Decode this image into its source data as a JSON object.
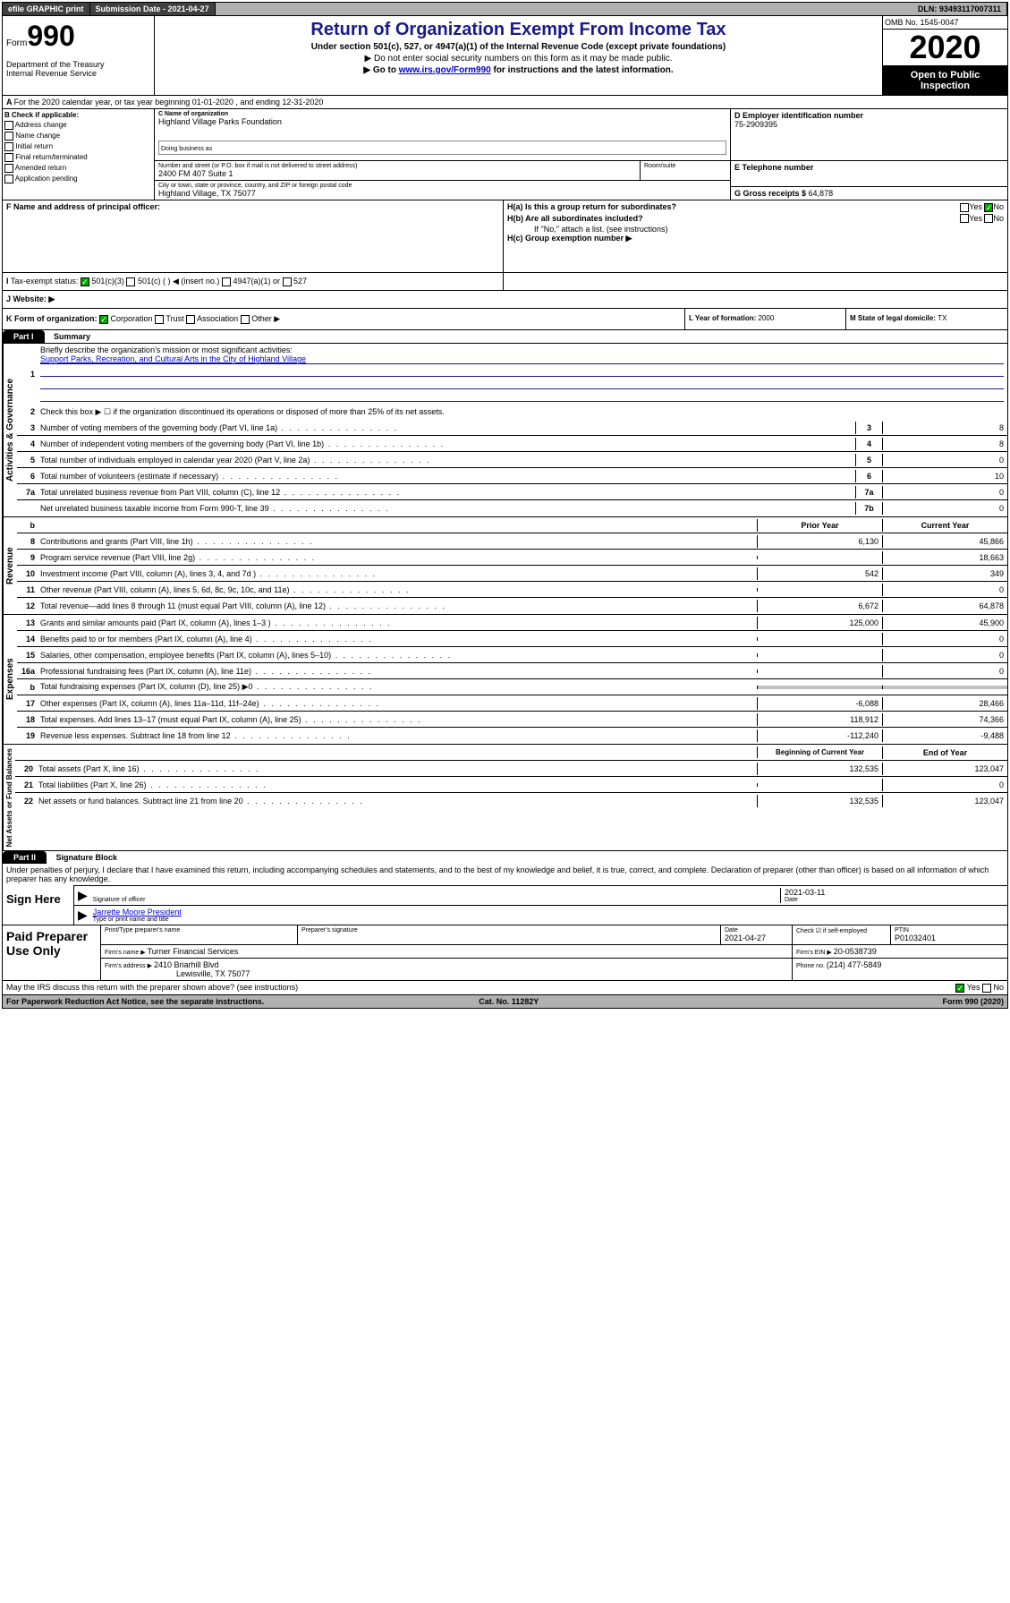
{
  "topbar": {
    "efile": "efile GRAPHIC print",
    "subdate_label": "Submission Date - ",
    "subdate": "2021-04-27",
    "dln_label": "DLN: ",
    "dln": "93493117007311"
  },
  "header": {
    "form_label": "Form",
    "form_no": "990",
    "dept": "Department of the Treasury\nInternal Revenue Service",
    "title": "Return of Organization Exempt From Income Tax",
    "sub1": "Under section 501(c), 527, or 4947(a)(1) of the Internal Revenue Code (except private foundations)",
    "sub2": "▶ Do not enter social security numbers on this form as it may be made public.",
    "sub3a": "▶ Go to ",
    "sub3_link": "www.irs.gov/Form990",
    "sub3b": " for instructions and the latest information.",
    "omb": "OMB No. 1545-0047",
    "year": "2020",
    "open": "Open to Public Inspection"
  },
  "rowA": "For the 2020 calendar year, or tax year beginning 01-01-2020  , and ending 12-31-2020",
  "colB": {
    "title": "B Check if applicable:",
    "items": [
      "Address change",
      "Name change",
      "Initial return",
      "Final return/terminated",
      "Amended return",
      "Application pending"
    ]
  },
  "entity": {
    "c_label": "C Name of organization",
    "c_name": "Highland Village Parks Foundation",
    "dba_label": "Doing business as",
    "street_label": "Number and street (or P.O. box if mail is not delivered to street address)",
    "street": "2400 FM 407 Suite 1",
    "room_label": "Room/suite",
    "city_label": "City or town, state or province, country, and ZIP or foreign postal code",
    "city": "Highland Village, TX  75077",
    "d_label": "D Employer identification number",
    "d_ein": "75-2909395",
    "e_label": "E Telephone number",
    "g_label": "G Gross receipts $ ",
    "g_amount": "64,878"
  },
  "f": {
    "label": "F  Name and address of principal officer:"
  },
  "h": {
    "a": "H(a)  Is this a group return for subordinates?",
    "b": "H(b)  Are all subordinates included?",
    "b_note": "If \"No,\" attach a list. (see instructions)",
    "c": "H(c)  Group exemption number ▶",
    "yes": "Yes",
    "no": "No"
  },
  "i": {
    "label": "Tax-exempt status:",
    "opts": [
      "501(c)(3)",
      "501(c) (  ) ◀ (insert no.)",
      "4947(a)(1) or",
      "527"
    ]
  },
  "j": {
    "label": "Website: ▶"
  },
  "k": {
    "label": "K Form of organization:",
    "opts": [
      "Corporation",
      "Trust",
      "Association",
      "Other ▶"
    ]
  },
  "l": {
    "label": "L Year of formation: ",
    "val": "2000"
  },
  "m": {
    "label": "M State of legal domicile: ",
    "val": "TX"
  },
  "part1": {
    "header": "Part I",
    "title": "Summary"
  },
  "summary": {
    "line1": "Briefly describe the organization's mission or most significant activities:",
    "line1_val": "Support Parks, Recreation, and Cultural Arts in the City of Highland Village",
    "line2": "Check this box ▶ ☐  if the organization discontinued its operations or disposed of more than 25% of its net assets.",
    "rows_single": [
      {
        "n": "3",
        "t": "Number of voting members of the governing body (Part VI, line 1a)",
        "c": "3",
        "v": "8"
      },
      {
        "n": "4",
        "t": "Number of independent voting members of the governing body (Part VI, line 1b)",
        "c": "4",
        "v": "8"
      },
      {
        "n": "5",
        "t": "Total number of individuals employed in calendar year 2020 (Part V, line 2a)",
        "c": "5",
        "v": "0"
      },
      {
        "n": "6",
        "t": "Total number of volunteers (estimate if necessary)",
        "c": "6",
        "v": "10"
      },
      {
        "n": "7a",
        "t": "Total unrelated business revenue from Part VIII, column (C), line 12",
        "c": "7a",
        "v": "0"
      },
      {
        "n": "",
        "t": "Net unrelated business taxable income from Form 990-T, line 39",
        "c": "7b",
        "v": "0"
      }
    ],
    "hdr_prior": "Prior Year",
    "hdr_curr": "Current Year",
    "revenue": [
      {
        "n": "8",
        "t": "Contributions and grants (Part VIII, line 1h)",
        "p": "6,130",
        "c": "45,866"
      },
      {
        "n": "9",
        "t": "Program service revenue (Part VIII, line 2g)",
        "p": "",
        "c": "18,663"
      },
      {
        "n": "10",
        "t": "Investment income (Part VIII, column (A), lines 3, 4, and 7d )",
        "p": "542",
        "c": "349"
      },
      {
        "n": "11",
        "t": "Other revenue (Part VIII, column (A), lines 5, 6d, 8c, 9c, 10c, and 11e)",
        "p": "",
        "c": "0"
      },
      {
        "n": "12",
        "t": "Total revenue—add lines 8 through 11 (must equal Part VIII, column (A), line 12)",
        "p": "6,672",
        "c": "64,878"
      }
    ],
    "expenses": [
      {
        "n": "13",
        "t": "Grants and similar amounts paid (Part IX, column (A), lines 1–3 )",
        "p": "125,000",
        "c": "45,900"
      },
      {
        "n": "14",
        "t": "Benefits paid to or for members (Part IX, column (A), line 4)",
        "p": "",
        "c": "0"
      },
      {
        "n": "15",
        "t": "Salaries, other compensation, employee benefits (Part IX, column (A), lines 5–10)",
        "p": "",
        "c": "0"
      },
      {
        "n": "16a",
        "t": "Professional fundraising fees (Part IX, column (A), line 11e)",
        "p": "",
        "c": "0"
      },
      {
        "n": "b",
        "t": "Total fundraising expenses (Part IX, column (D), line 25) ▶0",
        "p": "shaded",
        "c": "shaded"
      },
      {
        "n": "17",
        "t": "Other expenses (Part IX, column (A), lines 11a–11d, 11f–24e)",
        "p": "-6,088",
        "c": "28,466"
      },
      {
        "n": "18",
        "t": "Total expenses. Add lines 13–17 (must equal Part IX, column (A), line 25)",
        "p": "118,912",
        "c": "74,366"
      },
      {
        "n": "19",
        "t": "Revenue less expenses. Subtract line 18 from line 12",
        "p": "-112,240",
        "c": "-9,488"
      }
    ],
    "hdr_begin": "Beginning of Current Year",
    "hdr_end": "End of Year",
    "netassets": [
      {
        "n": "20",
        "t": "Total assets (Part X, line 16)",
        "p": "132,535",
        "c": "123,047"
      },
      {
        "n": "21",
        "t": "Total liabilities (Part X, line 26)",
        "p": "",
        "c": "0"
      },
      {
        "n": "22",
        "t": "Net assets or fund balances. Subtract line 21 from line 20",
        "p": "132,535",
        "c": "123,047"
      }
    ]
  },
  "vert": {
    "gov": "Activities & Governance",
    "rev": "Revenue",
    "exp": "Expenses",
    "net": "Net Assets or Fund Balances"
  },
  "part2": {
    "header": "Part II",
    "title": "Signature Block"
  },
  "sig": {
    "declare": "Under penalties of perjury, I declare that I have examined this return, including accompanying schedules and statements, and to the best of my knowledge and belief, it is true, correct, and complete. Declaration of preparer (other than officer) is based on all information of which preparer has any knowledge.",
    "sign_here": "Sign Here",
    "sig_officer": "Signature of officer",
    "date": "2021-03-11",
    "date_label": "Date",
    "name": "Jarrette Moore  President",
    "name_label": "Type or print name and title"
  },
  "prep": {
    "title": "Paid Preparer Use Only",
    "h1": "Print/Type preparer's name",
    "h2": "Preparer's signature",
    "h3": "Date",
    "h4": "Check ☑ if self-employed",
    "h5": "PTIN",
    "date": "2021-04-27",
    "ptin": "P01032401",
    "firm_name_label": "Firm's name   ▶ ",
    "firm_name": "Turner Financial Services",
    "firm_ein_label": "Firm's EIN ▶ ",
    "firm_ein": "20-0538739",
    "firm_addr_label": "Firm's address ▶ ",
    "firm_addr": "2410 Briarhill Blvd",
    "firm_city": "Lewisville, TX  75077",
    "phone_label": "Phone no. ",
    "phone": "(214) 477-5849"
  },
  "footer": {
    "discuss": "May the IRS discuss this return with the preparer shown above? (see instructions)",
    "paperwork": "For Paperwork Reduction Act Notice, see the separate instructions.",
    "cat": "Cat. No. 11282Y",
    "formno": "Form 990 (2020)"
  }
}
